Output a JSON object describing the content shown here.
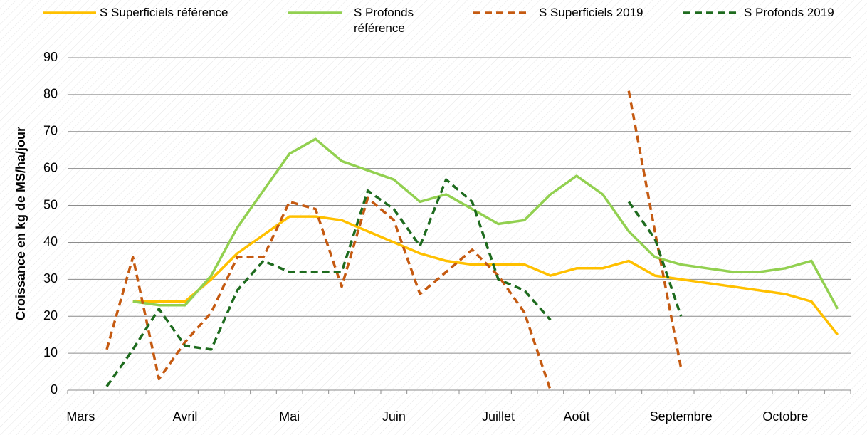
{
  "chart_data": {
    "type": "line",
    "y_label": "Croissance en kg de MS/ha/jour",
    "categories": [
      "Mars",
      null,
      null,
      null,
      "Avril",
      null,
      null,
      null,
      "Mai",
      null,
      null,
      null,
      "Juin",
      null,
      null,
      null,
      "Juillet",
      null,
      null,
      "Août",
      null,
      null,
      null,
      "Septembre",
      null,
      null,
      null,
      "Octobre",
      null,
      null
    ],
    "series": [
      {
        "name": "S Superficiels référence",
        "color": "#FFC000",
        "dashed": false,
        "values": [
          null,
          null,
          24,
          24,
          24,
          30,
          37,
          42,
          47,
          47,
          46,
          43,
          40,
          37,
          35,
          34,
          34,
          34,
          31,
          33,
          33,
          35,
          31,
          30,
          29,
          28,
          27,
          26,
          24,
          15
        ]
      },
      {
        "name": "S Profonds référence",
        "color": "#92D050",
        "dashed": false,
        "values": [
          null,
          null,
          24,
          23,
          23,
          31,
          44,
          54,
          64,
          68,
          62,
          59.5,
          57,
          51,
          53,
          49,
          45,
          46,
          53,
          58,
          53,
          43,
          36,
          34,
          33,
          32,
          32,
          33,
          35,
          22
        ]
      },
      {
        "name": "S Superficiels 2019",
        "color": "#C55A11",
        "dashed": true,
        "values": [
          null,
          11,
          36,
          3,
          13,
          21,
          36,
          36,
          51,
          49,
          28,
          52,
          46,
          26,
          32,
          38,
          31,
          21,
          0,
          null,
          null,
          81,
          43,
          6,
          null,
          null,
          null,
          null,
          null,
          null
        ]
      },
      {
        "name": "S Profonds 2019",
        "color": "#1E6B1E",
        "dashed": true,
        "values": [
          null,
          1,
          11,
          22,
          12,
          11,
          27,
          35,
          32,
          32,
          32,
          54,
          49,
          39,
          57,
          51,
          30,
          27,
          19,
          null,
          null,
          51,
          41,
          20,
          null,
          null,
          null,
          null,
          null,
          null
        ]
      }
    ],
    "ylim": [
      0,
      90
    ],
    "yticks": [
      0,
      10,
      20,
      30,
      40,
      50,
      60,
      70,
      80,
      90
    ],
    "grid": true
  }
}
